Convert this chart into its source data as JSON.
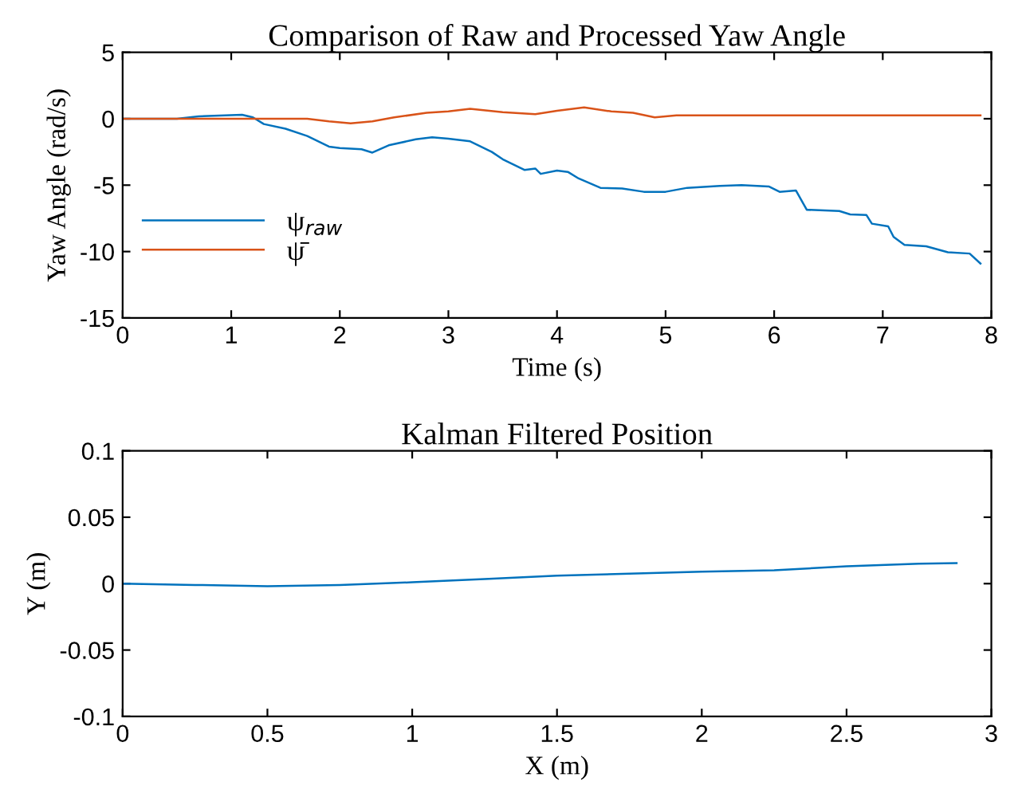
{
  "chart_data": [
    {
      "type": "line",
      "title": "Comparison of Raw and Processed Yaw Angle",
      "xlabel": "Time (s)",
      "ylabel": "Yaw Angle (rad/s)",
      "xlim": [
        0,
        8
      ],
      "ylim": [
        -15,
        5
      ],
      "xticks": [
        0,
        1,
        2,
        3,
        4,
        5,
        6,
        7,
        8
      ],
      "yticks": [
        -15,
        -10,
        -5,
        0,
        5
      ],
      "grid": false,
      "legend": "bottom left",
      "series": [
        {
          "name": "ψ$_{raw}$",
          "color": "#0072bd",
          "x": [
            0,
            0.5,
            0.7,
            1.1,
            1.2,
            1.3,
            1.5,
            1.7,
            1.9,
            2.0,
            2.2,
            2.3,
            2.45,
            2.7,
            2.85,
            3.0,
            3.2,
            3.4,
            3.5,
            3.7,
            3.8,
            3.85,
            4.0,
            4.1,
            4.2,
            4.4,
            4.6,
            4.8,
            5.0,
            5.2,
            5.5,
            5.7,
            5.95,
            6.05,
            6.2,
            6.3,
            6.6,
            6.7,
            6.85,
            6.9,
            7.05,
            7.1,
            7.2,
            7.4,
            7.6,
            7.8,
            7.9
          ],
          "values": [
            0,
            0,
            0.18,
            0.3,
            0.1,
            -0.4,
            -0.75,
            -1.3,
            -2.1,
            -2.2,
            -2.3,
            -2.55,
            -2.0,
            -1.55,
            -1.4,
            -1.5,
            -1.7,
            -2.5,
            -3.05,
            -3.85,
            -3.75,
            -4.15,
            -3.9,
            -4.0,
            -4.5,
            -5.2,
            -5.25,
            -5.5,
            -5.5,
            -5.2,
            -5.05,
            -5.0,
            -5.1,
            -5.5,
            -5.4,
            -6.85,
            -6.95,
            -7.2,
            -7.25,
            -7.9,
            -8.1,
            -8.9,
            -9.5,
            -9.6,
            -10.05,
            -10.15,
            -10.9
          ]
        },
        {
          "name": "ψ̄",
          "color": "#d95319",
          "x": [
            0,
            1.7,
            1.9,
            2.1,
            2.3,
            2.5,
            2.8,
            3.0,
            3.2,
            3.5,
            3.8,
            4.0,
            4.25,
            4.5,
            4.7,
            4.9,
            5.1,
            7.9
          ],
          "values": [
            0,
            0,
            -0.2,
            -0.35,
            -0.2,
            0.1,
            0.45,
            0.55,
            0.75,
            0.5,
            0.35,
            0.6,
            0.85,
            0.55,
            0.45,
            0.1,
            0.25,
            0.25
          ]
        }
      ]
    },
    {
      "type": "line",
      "title": "Kalman Filtered Position",
      "xlabel": "X (m)",
      "ylabel": "Y (m)",
      "xlim": [
        0,
        3
      ],
      "ylim": [
        -0.1,
        0.1
      ],
      "xticks": [
        0,
        0.5,
        1,
        1.5,
        2,
        2.5,
        3
      ],
      "yticks": [
        -0.1,
        -0.05,
        0,
        0.05,
        0.1
      ],
      "grid": false,
      "legend": false,
      "series": [
        {
          "color": "#0072bd",
          "x": [
            0,
            0.25,
            0.5,
            0.75,
            1,
            1.25,
            1.5,
            1.75,
            2.0,
            2.25,
            2.5,
            2.75,
            2.88
          ],
          "values": [
            0,
            -0.001,
            -0.002,
            -0.001,
            0.001,
            0.0035,
            0.006,
            0.0075,
            0.009,
            0.01,
            0.013,
            0.015,
            0.0155
          ]
        }
      ]
    }
  ]
}
